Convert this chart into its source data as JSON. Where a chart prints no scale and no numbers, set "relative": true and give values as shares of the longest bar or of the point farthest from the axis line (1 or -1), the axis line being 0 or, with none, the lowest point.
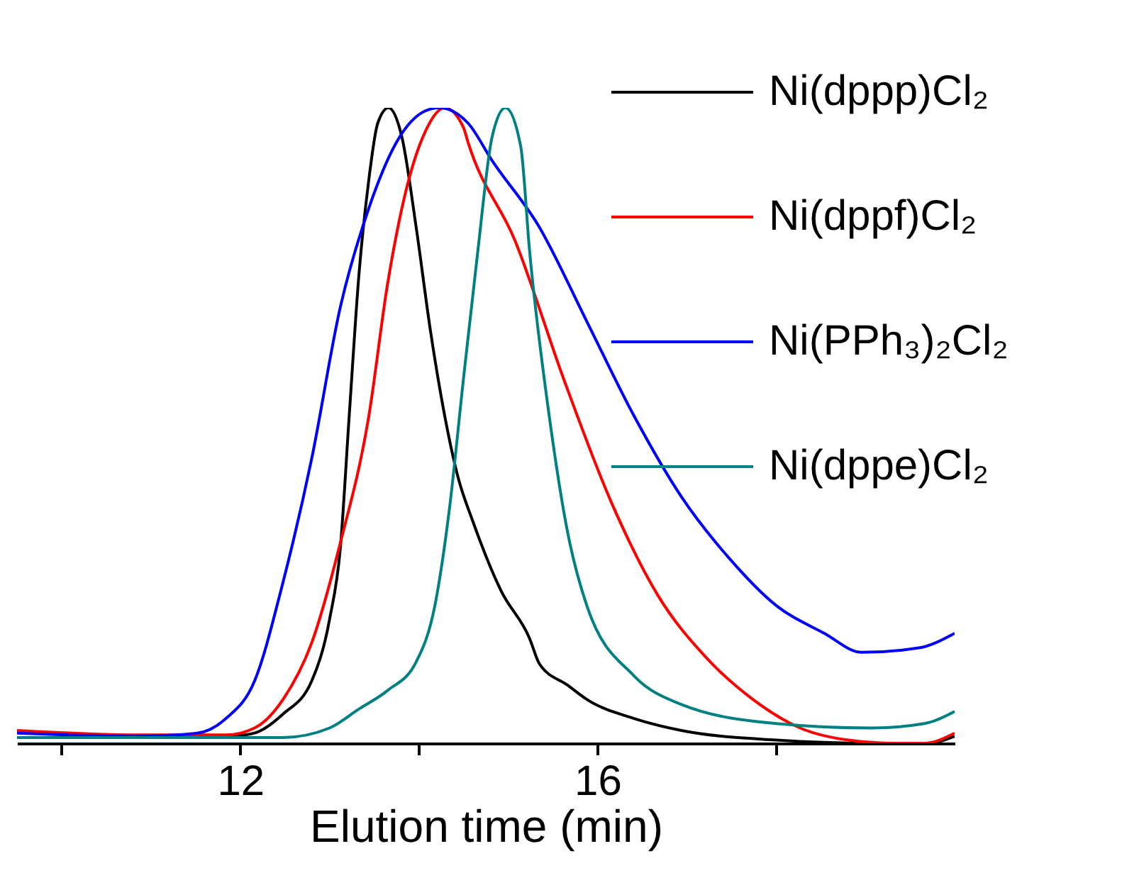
{
  "chart_data": {
    "type": "line",
    "relative": true,
    "xlabel": "Elution time (min)",
    "xlim": [
      9.5,
      20.0
    ],
    "xticks": [
      {
        "value": 10,
        "label": null
      },
      12,
      {
        "value": 14,
        "label": null
      },
      16,
      {
        "value": 18,
        "label": null
      }
    ],
    "legend": "top right",
    "series": [
      {
        "name": "Ni(dppp)Cl₂",
        "color": "#000000",
        "x": [
          11.84,
          12.16,
          12.48,
          12.8,
          13.0,
          13.12,
          13.22,
          13.33,
          13.44,
          13.54,
          13.66,
          13.81,
          13.97,
          14.13,
          14.29,
          14.44,
          14.6,
          14.92,
          15.24,
          15.35,
          15.67,
          15.88,
          16.41,
          16.94,
          18.0,
          19.07,
          19.7,
          20.0
        ],
        "values": [
          0.01,
          0.016,
          0.046,
          0.098,
          0.195,
          0.306,
          0.515,
          0.739,
          0.887,
          0.976,
          1.0,
          0.954,
          0.812,
          0.649,
          0.515,
          0.418,
          0.351,
          0.24,
          0.165,
          0.125,
          0.091,
          0.069,
          0.039,
          0.02,
          0.005,
          0,
          0,
          0.011
        ]
      },
      {
        "name": "Ni(dppf)Cl₂",
        "color": "#ff0000",
        "x": [
          9.5,
          10.88,
          11.84,
          12.16,
          12.48,
          12.8,
          13.12,
          13.44,
          13.65,
          13.86,
          14.07,
          14.29,
          14.5,
          14.55,
          15.08,
          15.62,
          16.15,
          16.68,
          17.21,
          17.74,
          18.27,
          18.81,
          19.34,
          19.66,
          20.0
        ],
        "values": [
          0.02,
          0.013,
          0.013,
          0.024,
          0.069,
          0.158,
          0.315,
          0.515,
          0.723,
          0.872,
          0.962,
          1.0,
          0.969,
          0.946,
          0.79,
          0.574,
          0.381,
          0.232,
          0.136,
          0.069,
          0.024,
          0.005,
          0,
          0,
          0.016
        ]
      },
      {
        "name": "Ni(PPh₃)₂Cl₂",
        "color": "#0000ff",
        "x": [
          9.5,
          10.88,
          11.52,
          11.84,
          12.16,
          12.48,
          12.8,
          13.12,
          13.44,
          13.75,
          14.07,
          14.23,
          14.55,
          14.82,
          15.35,
          15.88,
          16.41,
          16.94,
          17.47,
          18.0,
          18.54,
          18.96,
          19.6,
          20.0
        ],
        "values": [
          0.016,
          0.011,
          0.016,
          0.039,
          0.098,
          0.254,
          0.448,
          0.686,
          0.842,
          0.946,
          0.995,
          1.0,
          0.976,
          0.917,
          0.812,
          0.664,
          0.515,
          0.388,
          0.292,
          0.217,
          0.173,
          0.143,
          0.15,
          0.173
        ]
      },
      {
        "name": "Ni(dppe)Cl₂",
        "color": "#008080",
        "x": [
          9.5,
          12.48,
          13.0,
          13.33,
          13.65,
          13.97,
          14.18,
          14.34,
          14.5,
          14.66,
          14.82,
          14.97,
          15.14,
          15.24,
          15.46,
          15.67,
          15.88,
          16.41,
          16.94,
          18.0,
          19.07,
          19.66,
          20.0
        ],
        "values": [
          0.009,
          0.009,
          0.024,
          0.054,
          0.083,
          0.128,
          0.217,
          0.366,
          0.574,
          0.774,
          0.954,
          1.0,
          0.94,
          0.775,
          0.515,
          0.329,
          0.217,
          0.106,
          0.061,
          0.031,
          0.024,
          0.031,
          0.05
        ]
      }
    ]
  }
}
